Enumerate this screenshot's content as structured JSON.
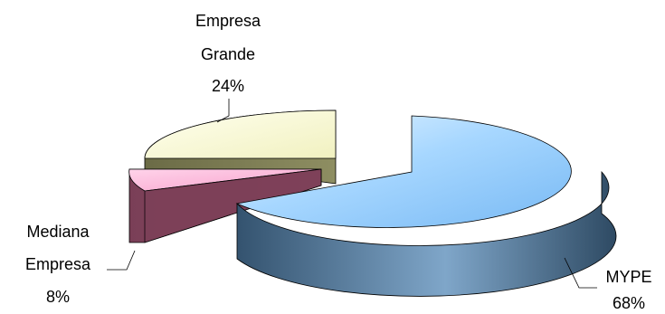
{
  "chart_data": {
    "type": "pie",
    "style": "3d-exploded",
    "slices": [
      {
        "category": "MYPE",
        "value": 68,
        "label": "68%",
        "color": "#99ccff"
      },
      {
        "category": "Empresa Grande",
        "value": 24,
        "label": "24%",
        "color": "#ffffcc"
      },
      {
        "category": "Mediana Empresa",
        "value": 8,
        "label": "8%",
        "color": "#ff99cc"
      }
    ],
    "title": "",
    "legend": "none",
    "labels": "outside with leader lines"
  }
}
